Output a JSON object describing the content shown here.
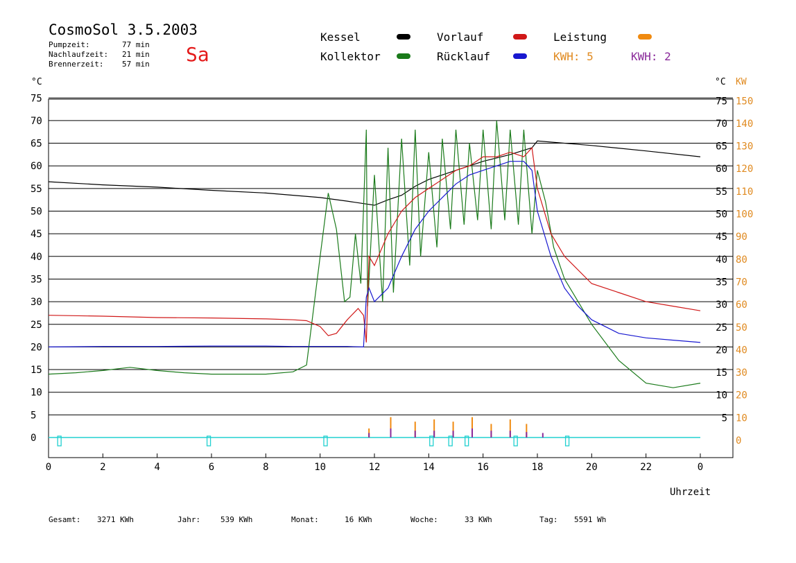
{
  "header": {
    "title": "CosmoSol 3.5.2003",
    "day": "Sa",
    "stats": [
      {
        "label": "Pumpzeit:",
        "value": "77 min"
      },
      {
        "label": "Nachlaufzeit:",
        "value": "21 min"
      },
      {
        "label": "Brennerzeit:",
        "value": "57 min"
      }
    ]
  },
  "legend": {
    "kessel": "Kessel",
    "kollektor": "Kollektor",
    "vorlauf": "Vorlauf",
    "ruecklauf": "Rücklauf",
    "leistung": "Leistung",
    "kwh_orange": "KWH: 5",
    "kwh_purple": "KWH: 2"
  },
  "colors": {
    "kessel": "#000000",
    "kollektor": "#1a7a1a",
    "vorlauf": "#d01818",
    "ruecklauf": "#1818d0",
    "leistung": "#f08a10",
    "kwh_purple": "#8a2a9a",
    "pump": "#20d0d0",
    "kw_axis": "#e08a20"
  },
  "axes": {
    "left_unit": "°C",
    "right_unit": "°C",
    "kw_unit": "KW",
    "x_label": "Uhrzeit"
  },
  "footer": [
    {
      "label": "Gesamt:",
      "value": "3271 KWh"
    },
    {
      "label": "Jahr:",
      "value": "539 KWh"
    },
    {
      "label": "Monat:",
      "value": "16 KWh"
    },
    {
      "label": "Woche:",
      "value": "33 KWh"
    },
    {
      "label": "Tag:",
      "value": "5591 Wh"
    }
  ],
  "chart_data": {
    "type": "line",
    "title": "CosmoSol 3.5.2003",
    "xlabel": "Uhrzeit",
    "ylabel": "°C",
    "y2label": "KW",
    "xlim": [
      0,
      24
    ],
    "ylim": [
      0,
      75
    ],
    "y2lim": [
      0,
      150
    ],
    "x_ticks": [
      "0",
      "2",
      "4",
      "6",
      "8",
      "10",
      "12",
      "14",
      "16",
      "18",
      "20",
      "22",
      "0"
    ],
    "y_ticks_left": [
      0,
      5,
      10,
      15,
      20,
      25,
      30,
      35,
      40,
      45,
      50,
      55,
      60,
      65,
      70,
      75
    ],
    "y_ticks_right": [
      5,
      10,
      15,
      20,
      25,
      30,
      35,
      40,
      45,
      50,
      55,
      60,
      65,
      70,
      75
    ],
    "y_ticks_kw": [
      0,
      10,
      20,
      30,
      40,
      50,
      60,
      70,
      80,
      90,
      100,
      110,
      120,
      130,
      140,
      150
    ],
    "grid": true,
    "series": [
      {
        "name": "Kessel",
        "x": [
          0,
          2,
          4,
          6,
          8,
          10,
          11,
          12,
          12.5,
          13,
          13.5,
          14,
          15,
          16,
          17,
          17.8,
          18,
          20,
          22,
          24
        ],
        "y": [
          56.5,
          55.8,
          55.3,
          54.6,
          54,
          53,
          52.2,
          51.3,
          52.5,
          53.5,
          55.5,
          57,
          59,
          61,
          62.5,
          64,
          65.5,
          64.5,
          63.3,
          62
        ]
      },
      {
        "name": "Kollektor",
        "x": [
          0,
          1,
          2,
          3,
          4,
          5,
          6,
          7,
          8,
          9,
          9.5,
          10,
          10.3,
          10.6,
          10.9,
          11.1,
          11.3,
          11.5,
          11.7,
          11.75,
          12,
          12.3,
          12.5,
          12.7,
          13,
          13.3,
          13.5,
          13.7,
          14,
          14.3,
          14.5,
          14.8,
          15,
          15.3,
          15.5,
          15.8,
          16,
          16.3,
          16.5,
          16.8,
          17,
          17.3,
          17.5,
          17.8,
          18,
          18.3,
          18.6,
          19,
          19.5,
          20,
          21,
          22,
          23,
          24
        ],
        "y": [
          14,
          14.3,
          14.8,
          15.5,
          14.8,
          14.3,
          14,
          14,
          14,
          14.5,
          16,
          40,
          54,
          46,
          30,
          31,
          45,
          34,
          68,
          29,
          58,
          30,
          64,
          32,
          66,
          38,
          68,
          40,
          63,
          42,
          66,
          46,
          68,
          47,
          65,
          48,
          68,
          46,
          70,
          48,
          68,
          47,
          68,
          45,
          59,
          52,
          42,
          35,
          30,
          25,
          17,
          12,
          11,
          12
        ]
      },
      {
        "name": "Vorlauf",
        "x": [
          0,
          2,
          4,
          6,
          8,
          9,
          9.5,
          10,
          10.3,
          10.6,
          11,
          11.4,
          11.6,
          11.7,
          11.8,
          12,
          12.5,
          13,
          13.5,
          14,
          14.5,
          15,
          15.5,
          16,
          16.5,
          17,
          17.5,
          17.8,
          18,
          18.5,
          19,
          20,
          21,
          22,
          23,
          24
        ],
        "y": [
          27,
          26.8,
          26.5,
          26.4,
          26.2,
          26,
          25.8,
          24.5,
          22.5,
          23,
          26,
          28.5,
          27,
          21,
          40,
          38,
          45,
          50,
          53,
          55,
          57,
          59,
          60,
          62,
          62,
          63,
          62,
          64,
          55,
          45,
          40,
          34,
          32,
          30,
          29,
          28
        ]
      },
      {
        "name": "Rücklauf",
        "x": [
          0,
          2,
          4,
          6,
          8,
          9,
          10,
          11,
          11.6,
          11.7,
          11.8,
          12,
          12.5,
          13,
          13.5,
          14,
          14.5,
          15,
          15.5,
          16,
          16.5,
          17,
          17.5,
          17.8,
          18,
          18.5,
          19,
          19.5,
          20,
          21,
          22,
          23,
          24
        ],
        "y": [
          20,
          20.1,
          20.1,
          20.2,
          20.2,
          20.1,
          20.1,
          20.1,
          20,
          31,
          33,
          30,
          33,
          40,
          46,
          50,
          53,
          56,
          58,
          59,
          60,
          61,
          61,
          59,
          50,
          40,
          33,
          29,
          26,
          23,
          22,
          21.5,
          21
        ]
      },
      {
        "name": "Leistung",
        "x": [
          11.8,
          12.6,
          13.5,
          14.2,
          14.9,
          15.6,
          16.3,
          17,
          17.6
        ],
        "y": [
          2,
          4.5,
          3.5,
          4,
          3.5,
          4.5,
          3,
          4,
          3
        ]
      },
      {
        "name": "KWH: 2",
        "x": [
          11.8,
          12.6,
          13.5,
          14.2,
          14.9,
          15.6,
          16.3,
          17,
          17.6,
          18.2
        ],
        "y": [
          1,
          2,
          1.5,
          1.5,
          1.5,
          2,
          1.5,
          1.5,
          1.2,
          1
        ]
      }
    ],
    "pump_markers_x": [
      0.4,
      5.9,
      10.2,
      14.1,
      14.8,
      15.4,
      17.2,
      19.1
    ]
  }
}
